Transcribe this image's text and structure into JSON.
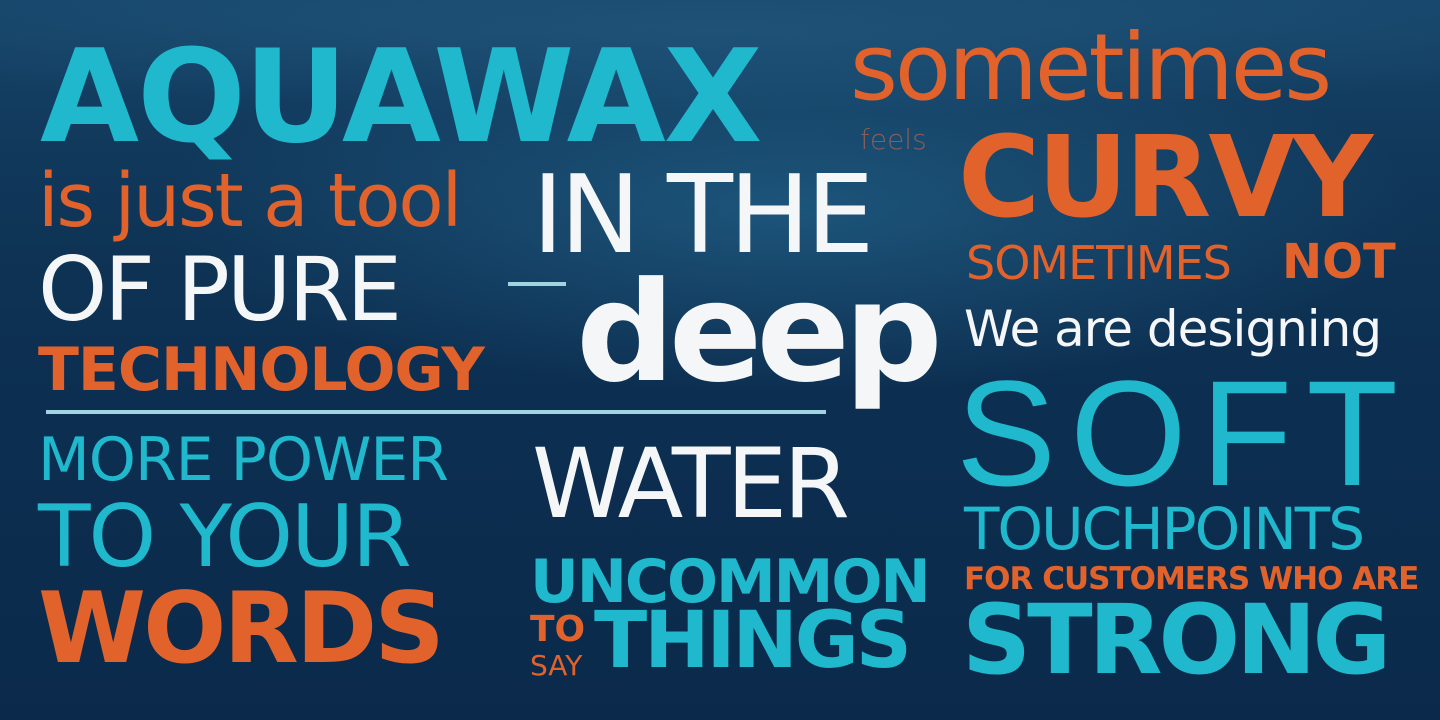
{
  "background": {
    "base": "#0c2e50",
    "highlight": "#16456a"
  },
  "colors": {
    "teal": "#1fb8cc",
    "orange": "#e2622c",
    "white": "#f4f6f8",
    "rule": "#9fd4e0"
  },
  "words": {
    "aquawax": "AQUAWAX",
    "is_just_a_tool": "is just a tool",
    "of_pure": "OF PURE",
    "technology": "TECHNOLOGY",
    "more_power": "MORE POWER",
    "to_your": "TO YOUR",
    "words": "WORDS",
    "in_the": "IN THE",
    "deep": "deep",
    "water": "WATER",
    "uncommon": "UNCOMMON",
    "to": "TO",
    "say": "SAY",
    "things": "THINGS",
    "sometimes_lower": "sometimes",
    "feels": "feels",
    "curvy": "CURVY",
    "sometimes_upper": "SOMETIMES",
    "not": "NOT",
    "we_are_designing": "We are designing",
    "soft": "SOFT",
    "touchpoints": "TOUCHPOINTS",
    "for_customers": "FOR CUSTOMERS WHO ARE",
    "strong": "STRONG"
  }
}
